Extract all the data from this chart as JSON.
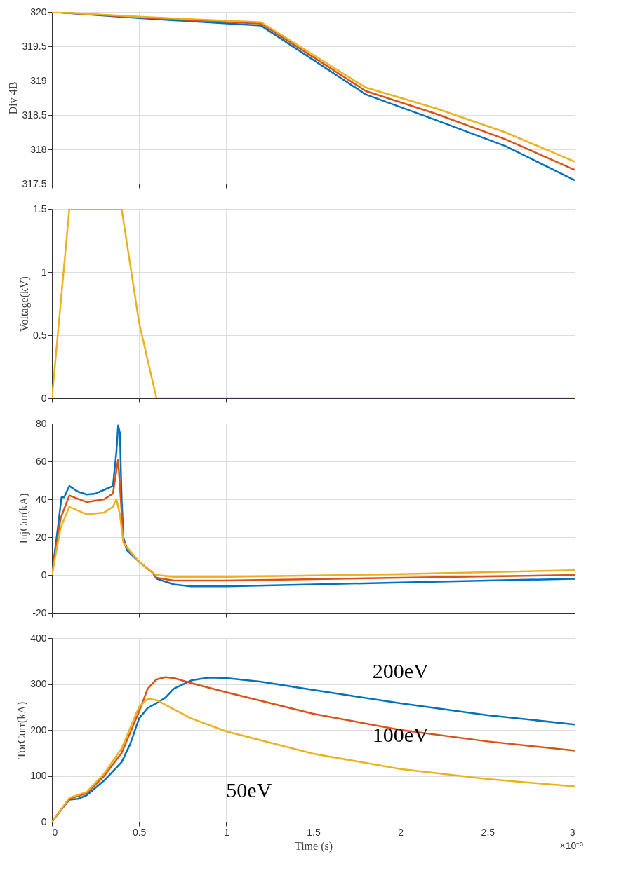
{
  "chart_data": [
    {
      "type": "line",
      "ylabel": "Div 4B",
      "x": [
        0,
        0.5,
        1.2,
        1.8,
        2.2,
        2.6,
        3.0
      ],
      "xlim": [
        0,
        3
      ],
      "xticks": [
        0,
        0.5,
        1,
        1.5,
        2,
        2.5,
        3
      ],
      "ylim": [
        317.5,
        320
      ],
      "yticks": [
        317.5,
        318,
        318.5,
        319,
        319.5,
        320
      ],
      "grid": true,
      "tick_labels": "y",
      "series": [
        {
          "color": "#0072bd",
          "values": [
            320,
            319.91,
            319.8,
            318.8,
            318.43,
            318.05,
            317.55
          ]
        },
        {
          "color": "#d95319",
          "values": [
            320,
            319.92,
            319.83,
            318.85,
            318.52,
            318.15,
            317.7
          ]
        },
        {
          "color": "#edb120",
          "values": [
            320,
            319.93,
            319.85,
            318.9,
            318.6,
            318.25,
            317.82
          ]
        }
      ]
    },
    {
      "type": "line",
      "ylabel": "Voltage(kV)",
      "x": [
        0,
        0.1,
        0.4,
        0.5,
        0.6,
        3.0
      ],
      "xlim": [
        0,
        3
      ],
      "xticks": [
        0,
        0.5,
        1,
        1.5,
        2,
        2.5,
        3
      ],
      "ylim": [
        0,
        1.5
      ],
      "yticks": [
        0,
        0.5,
        1,
        1.5
      ],
      "grid": true,
      "tick_labels": "y",
      "series": [
        {
          "color": "#edb120",
          "values": [
            0,
            1.5,
            1.5,
            0.6,
            0,
            0
          ]
        }
      ]
    },
    {
      "type": "line",
      "ylabel": "InjCur(kA)",
      "xlim": [
        0,
        3
      ],
      "xticks": [
        0,
        0.5,
        1,
        1.5,
        2,
        2.5,
        3
      ],
      "ylim": [
        -20,
        80
      ],
      "yticks": [
        -20,
        0,
        20,
        40,
        60,
        80
      ],
      "grid": true,
      "tick_labels": "y",
      "series": [
        {
          "color": "#0072bd",
          "x": [
            0,
            0.03,
            0.055,
            0.07,
            0.1,
            0.15,
            0.2,
            0.25,
            0.3,
            0.35,
            0.37,
            0.38,
            0.39,
            0.4,
            0.41,
            0.43,
            0.5,
            0.58,
            0.6,
            0.7,
            0.8,
            1.0,
            1.5,
            2.0,
            2.5,
            3.0
          ],
          "values": [
            0,
            22,
            41,
            41,
            47,
            44,
            42.5,
            43,
            45,
            47,
            65,
            79,
            75,
            40,
            20,
            13,
            7,
            1,
            -2,
            -5,
            -6,
            -6,
            -5,
            -4,
            -3,
            -2
          ]
        },
        {
          "color": "#d95319",
          "x": [
            0,
            0.05,
            0.1,
            0.2,
            0.3,
            0.35,
            0.38,
            0.395,
            0.41,
            0.45,
            0.5,
            0.58,
            0.6,
            0.7,
            1.0,
            2.0,
            3.0
          ],
          "values": [
            0,
            30,
            42,
            38.5,
            40,
            43,
            61,
            40,
            18,
            12,
            7,
            1,
            -1.5,
            -3,
            -3,
            -1.5,
            0
          ]
        },
        {
          "color": "#edb120",
          "x": [
            0,
            0.05,
            0.1,
            0.2,
            0.3,
            0.35,
            0.37,
            0.39,
            0.41,
            0.5,
            0.58,
            0.6,
            0.7,
            1.0,
            2.0,
            3.0
          ],
          "values": [
            0,
            25,
            36,
            32,
            33,
            36,
            40,
            32,
            17,
            7,
            1,
            0,
            -1,
            -1,
            0.5,
            2.5
          ]
        }
      ]
    },
    {
      "type": "line",
      "ylabel": "TorCurr(kA)",
      "xlabel": "Time (s)",
      "xlim": [
        0,
        3
      ],
      "xticks": [
        0,
        0.5,
        1,
        1.5,
        2,
        2.5,
        3
      ],
      "ylim": [
        0,
        400
      ],
      "yticks": [
        0,
        100,
        200,
        300,
        400
      ],
      "grid": true,
      "annotations": [
        "×10⁻³"
      ],
      "series": [
        {
          "name": "200eV",
          "color": "#0072bd",
          "x": [
            0,
            0.05,
            0.1,
            0.15,
            0.2,
            0.3,
            0.4,
            0.45,
            0.5,
            0.55,
            0.6,
            0.65,
            0.7,
            0.8,
            0.9,
            1.0,
            1.2,
            1.5,
            2.0,
            2.5,
            3.0
          ],
          "values": [
            0,
            25,
            48,
            50,
            58,
            90,
            130,
            170,
            225,
            248,
            258,
            270,
            290,
            308,
            314,
            313,
            305,
            287,
            258,
            232,
            212
          ]
        },
        {
          "name": "100eV",
          "color": "#d95319",
          "x": [
            0,
            0.1,
            0.2,
            0.3,
            0.4,
            0.5,
            0.55,
            0.6,
            0.65,
            0.7,
            0.8,
            1.0,
            1.5,
            2.0,
            2.5,
            3.0
          ],
          "values": [
            0,
            50,
            62,
            100,
            150,
            240,
            290,
            310,
            315,
            313,
            302,
            282,
            235,
            200,
            175,
            155
          ]
        },
        {
          "name": "50eV",
          "color": "#edb120",
          "x": [
            0,
            0.1,
            0.2,
            0.3,
            0.4,
            0.5,
            0.55,
            0.6,
            0.7,
            0.8,
            1.0,
            1.5,
            2.0,
            2.5,
            3.0
          ],
          "values": [
            0,
            52,
            65,
            105,
            160,
            250,
            268,
            265,
            245,
            225,
            197,
            148,
            115,
            93,
            77
          ]
        }
      ]
    }
  ]
}
